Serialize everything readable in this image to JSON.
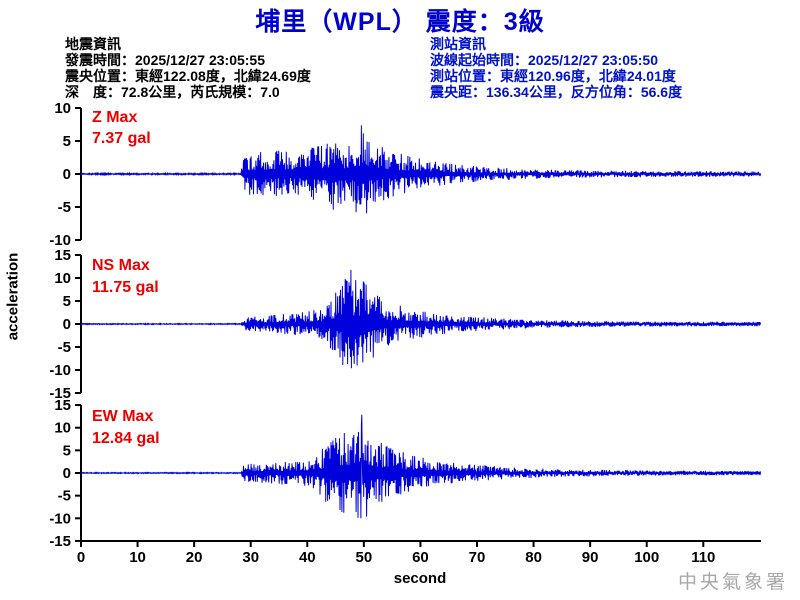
{
  "title": "埔里（WPL） 震度：3級",
  "earthquake_info": {
    "heading": "地震資訊",
    "origin_time_line": "發震時間：2025/12/27 23:05:55",
    "epicenter_line": "震央位置：東經122.08度，北緯24.69度",
    "depth_magnitude_line": "深　度：72.8公里，芮氏規模：7.0"
  },
  "station_info": {
    "heading": "測站資訊",
    "wave_start_line": "波線起始時間：2025/12/27 23:05:50",
    "station_location_line": "測站位置：東經120.96度，北緯24.01度",
    "distance_azimuth_line": "震央距：136.34公里，反方位角：56.6度"
  },
  "watermark": "中央氣象署",
  "colors": {
    "title_blue": "#0000cc",
    "station_info_blue": "#0011cc",
    "waveform_blue": "#0000dd",
    "max_label_red": "#ee0000",
    "axis_black": "#000000",
    "watermark_gray": "#a8a8a8"
  },
  "chart_data": {
    "type": "line",
    "xlabel": "second",
    "ylabel": "acceleration",
    "x_range": [
      0,
      120.2
    ],
    "x_ticks": [
      0,
      10,
      20,
      30,
      40,
      50,
      60,
      70,
      80,
      90,
      100,
      110
    ],
    "signal_onset_s": 28.3,
    "panels": [
      {
        "channel": "Z",
        "max_label": "Z Max",
        "max_value_label": "7.37 gal",
        "max_gal": 7.37,
        "peak_time_s": 49.5,
        "ylim": [
          -10,
          10
        ],
        "y_ticks": [
          10,
          5,
          0,
          -5,
          -10
        ],
        "envelope": [
          [
            0,
            0.12
          ],
          [
            28.3,
            0.12
          ],
          [
            28.6,
            2.6
          ],
          [
            30,
            3.3
          ],
          [
            34,
            3.6
          ],
          [
            38,
            3.4
          ],
          [
            42,
            4.3
          ],
          [
            44,
            5.8
          ],
          [
            46,
            4.6
          ],
          [
            48,
            5.2
          ],
          [
            49.5,
            7.2
          ],
          [
            51,
            5.4
          ],
          [
            53,
            4.2
          ],
          [
            56,
            3.2
          ],
          [
            60,
            2.4
          ],
          [
            64,
            1.7
          ],
          [
            68,
            1.3
          ],
          [
            72,
            1.0
          ],
          [
            78,
            0.8
          ],
          [
            85,
            0.6
          ],
          [
            95,
            0.5
          ],
          [
            105,
            0.45
          ],
          [
            120,
            0.4
          ]
        ]
      },
      {
        "channel": "NS",
        "max_label": "NS Max",
        "max_value_label": "11.75 gal",
        "max_gal": 11.75,
        "peak_time_s": 47.7,
        "ylim": [
          -15,
          15
        ],
        "y_ticks": [
          15,
          10,
          5,
          0,
          -5,
          -10,
          -15
        ],
        "envelope": [
          [
            0,
            0.12
          ],
          [
            28.3,
            0.12
          ],
          [
            28.6,
            1.5
          ],
          [
            32,
            1.8
          ],
          [
            36,
            2.2
          ],
          [
            40,
            2.7
          ],
          [
            43,
            3.6
          ],
          [
            45,
            7.0
          ],
          [
            46.5,
            10.5
          ],
          [
            47.7,
            11.2
          ],
          [
            49,
            9.0
          ],
          [
            50.5,
            10.2
          ],
          [
            52,
            6.8
          ],
          [
            54,
            5.0
          ],
          [
            57,
            3.8
          ],
          [
            60,
            3.0
          ],
          [
            64,
            2.2
          ],
          [
            68,
            1.7
          ],
          [
            73,
            1.3
          ],
          [
            80,
            0.9
          ],
          [
            90,
            0.65
          ],
          [
            100,
            0.55
          ],
          [
            120,
            0.45
          ]
        ]
      },
      {
        "channel": "EW",
        "max_label": "EW Max",
        "max_value_label": "12.84 gal",
        "max_gal": 12.84,
        "peak_time_s": 49.6,
        "ylim": [
          -15,
          15
        ],
        "y_ticks": [
          15,
          10,
          5,
          0,
          -5,
          -10,
          -15
        ],
        "envelope": [
          [
            0,
            0.12
          ],
          [
            28.3,
            0.12
          ],
          [
            28.6,
            1.9
          ],
          [
            32,
            2.2
          ],
          [
            36,
            2.6
          ],
          [
            40,
            3.2
          ],
          [
            42,
            4.5
          ],
          [
            44,
            7.5
          ],
          [
            46,
            9.5
          ],
          [
            48,
            8.5
          ],
          [
            49.6,
            12.0
          ],
          [
            51,
            9.0
          ],
          [
            53,
            7.0
          ],
          [
            55,
            5.5
          ],
          [
            58,
            4.2
          ],
          [
            61,
            3.2
          ],
          [
            65,
            2.4
          ],
          [
            70,
            1.8
          ],
          [
            76,
            1.3
          ],
          [
            83,
            0.9
          ],
          [
            92,
            0.7
          ],
          [
            102,
            0.55
          ],
          [
            120,
            0.45
          ]
        ]
      }
    ]
  }
}
